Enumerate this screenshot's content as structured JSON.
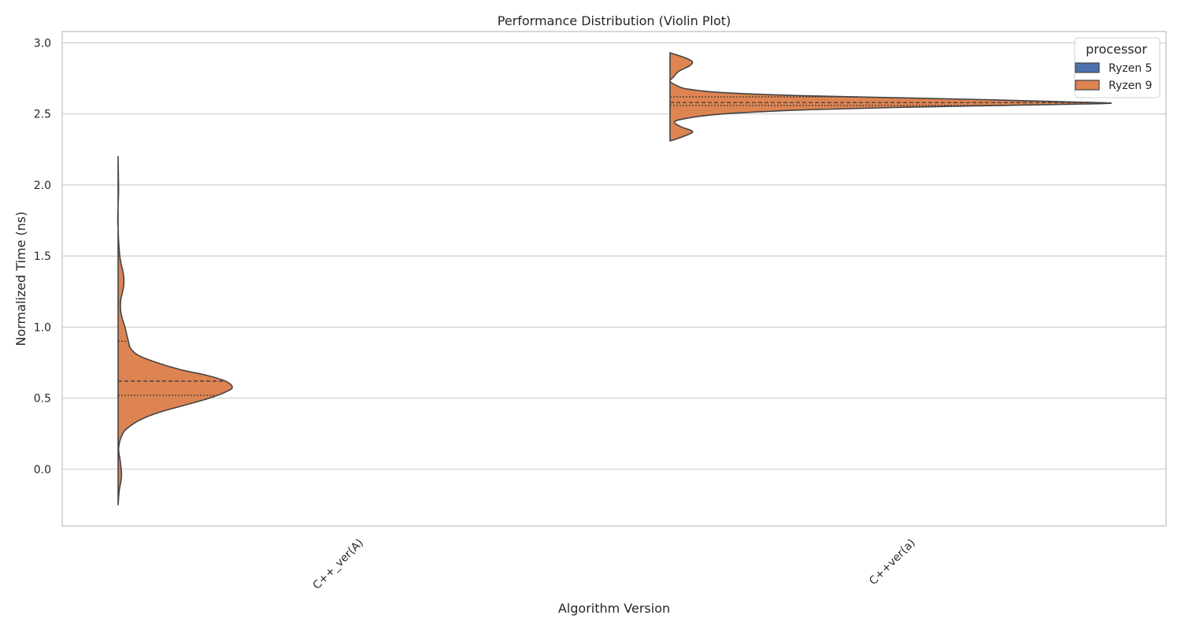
{
  "chart_data": {
    "type": "violin",
    "title": "Performance Distribution (Violin Plot)",
    "xlabel": "Algorithm Version",
    "ylabel": "Normalized Time (ns)",
    "ylim": [
      -0.4,
      3.08
    ],
    "yticks": [
      0.0,
      0.5,
      1.0,
      1.5,
      2.0,
      2.5,
      3.0
    ],
    "ytick_labels": [
      "0.0",
      "0.5",
      "1.0",
      "1.5",
      "2.0",
      "2.5",
      "3.0"
    ],
    "categories": [
      "C++_ver(A)",
      "C++ver(a)"
    ],
    "grid": true,
    "split": true,
    "legend": {
      "title": "processor",
      "placement": "top-right",
      "entries": [
        {
          "name": "Ryzen 5",
          "color": "#4c72b0"
        },
        {
          "name": "Ryzen 9",
          "color": "#dd8452"
        }
      ]
    },
    "violins": [
      {
        "category": "C++_ver(A)",
        "series": "Ryzen 9",
        "side": "right",
        "color": "#dd8452",
        "min": -0.25,
        "max": 2.2,
        "q1": 0.52,
        "median": 0.62,
        "q3": 0.9,
        "density": [
          [
            -0.25,
            0.0
          ],
          [
            -0.15,
            0.01
          ],
          [
            -0.05,
            0.03
          ],
          [
            0.05,
            0.02
          ],
          [
            0.15,
            0.005
          ],
          [
            0.25,
            0.04
          ],
          [
            0.3,
            0.1
          ],
          [
            0.35,
            0.2
          ],
          [
            0.4,
            0.36
          ],
          [
            0.45,
            0.58
          ],
          [
            0.5,
            0.8
          ],
          [
            0.55,
            0.96
          ],
          [
            0.58,
            1.0
          ],
          [
            0.62,
            0.94
          ],
          [
            0.66,
            0.78
          ],
          [
            0.7,
            0.55
          ],
          [
            0.75,
            0.34
          ],
          [
            0.8,
            0.18
          ],
          [
            0.85,
            0.11
          ],
          [
            0.9,
            0.09
          ],
          [
            0.95,
            0.075
          ],
          [
            1.0,
            0.06
          ],
          [
            1.05,
            0.04
          ],
          [
            1.1,
            0.025
          ],
          [
            1.15,
            0.02
          ],
          [
            1.2,
            0.025
          ],
          [
            1.25,
            0.04
          ],
          [
            1.3,
            0.05
          ],
          [
            1.35,
            0.05
          ],
          [
            1.4,
            0.04
          ],
          [
            1.45,
            0.025
          ],
          [
            1.5,
            0.015
          ],
          [
            1.6,
            0.005
          ],
          [
            1.7,
            0.0
          ],
          [
            1.75,
            -0.003
          ],
          [
            1.85,
            0.0
          ],
          [
            1.95,
            0.004
          ],
          [
            2.05,
            0.003
          ],
          [
            2.15,
            0.001
          ],
          [
            2.2,
            0.0
          ]
        ]
      },
      {
        "category": "C++ver(a)",
        "series": "Ryzen 9",
        "side": "right",
        "color": "#dd8452",
        "min": 2.31,
        "max": 2.93,
        "q1": 2.56,
        "median": 2.58,
        "q3": 2.62,
        "density": [
          [
            2.31,
            0.0
          ],
          [
            2.33,
            0.02
          ],
          [
            2.36,
            0.045
          ],
          [
            2.38,
            0.05
          ],
          [
            2.41,
            0.025
          ],
          [
            2.445,
            0.01
          ],
          [
            2.47,
            0.04
          ],
          [
            2.5,
            0.12
          ],
          [
            2.53,
            0.32
          ],
          [
            2.55,
            0.58
          ],
          [
            2.565,
            0.85
          ],
          [
            2.575,
            1.0
          ],
          [
            2.585,
            0.9
          ],
          [
            2.6,
            0.72
          ],
          [
            2.615,
            0.5
          ],
          [
            2.63,
            0.28
          ],
          [
            2.65,
            0.12
          ],
          [
            2.675,
            0.04
          ],
          [
            2.7,
            0.015
          ],
          [
            2.73,
            0.0
          ],
          [
            2.76,
            0.008
          ],
          [
            2.8,
            0.02
          ],
          [
            2.84,
            0.045
          ],
          [
            2.87,
            0.05
          ],
          [
            2.9,
            0.03
          ],
          [
            2.93,
            0.0
          ]
        ]
      }
    ]
  }
}
